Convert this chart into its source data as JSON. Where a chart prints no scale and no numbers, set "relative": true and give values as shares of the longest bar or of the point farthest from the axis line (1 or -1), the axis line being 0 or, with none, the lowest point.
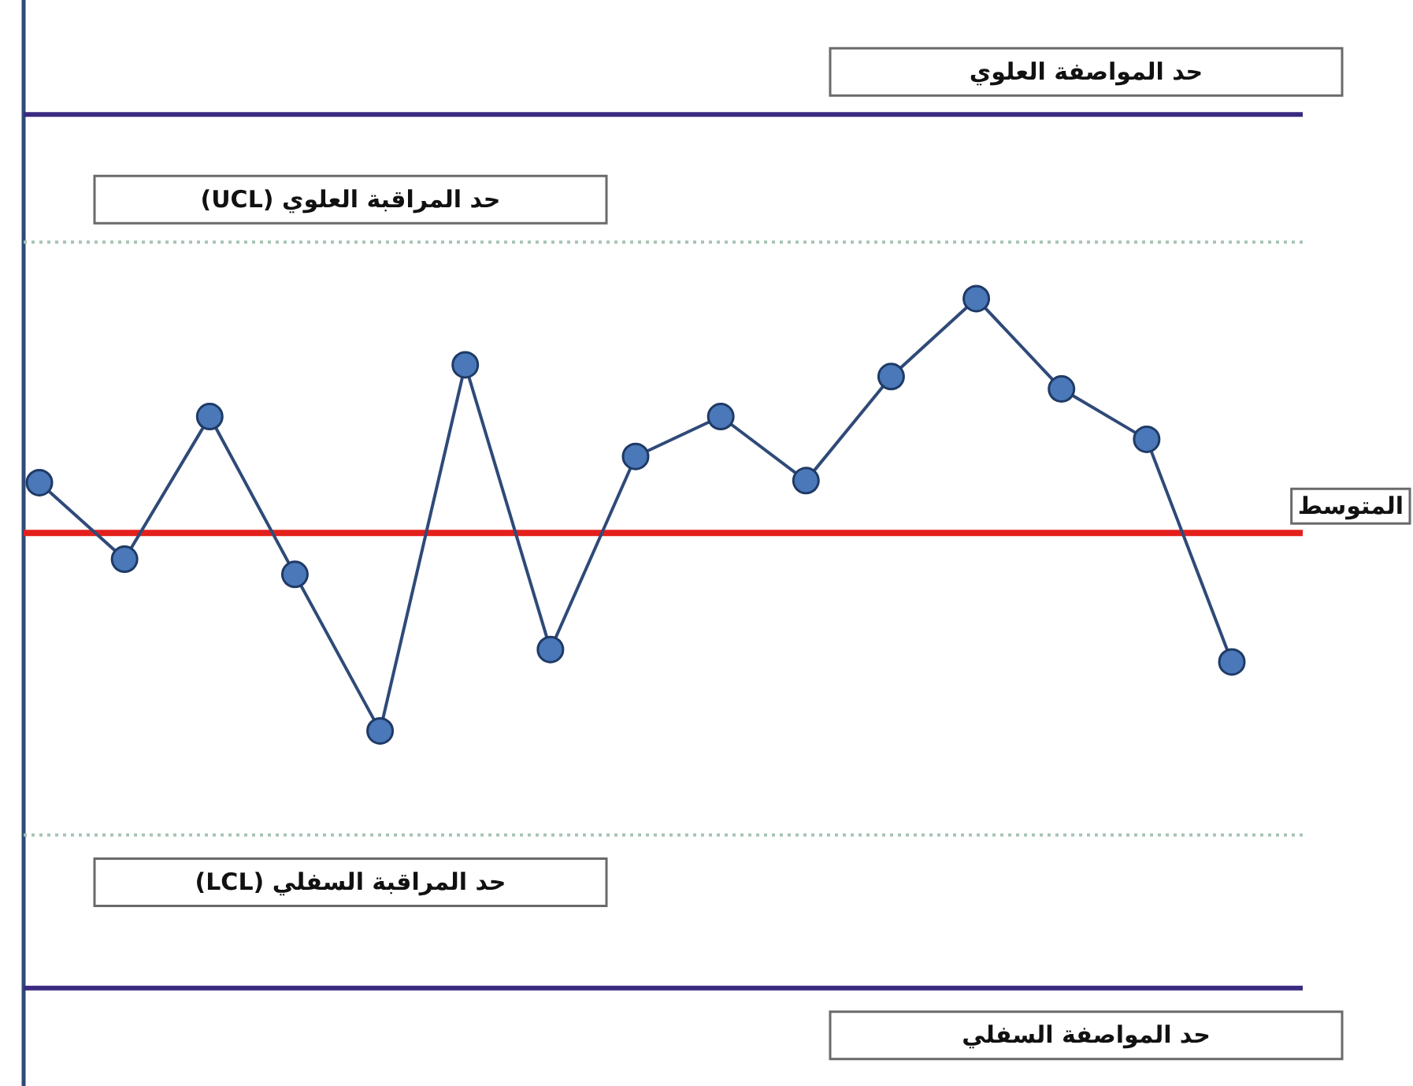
{
  "chart_data": {
    "type": "line",
    "relative": true,
    "categories": [
      null,
      null,
      null,
      null,
      null,
      null,
      null,
      null,
      null,
      null,
      null,
      null,
      null,
      null,
      null
    ],
    "series": [
      {
        "color": "#2f4a78",
        "values": [
          0.733,
          0.622,
          0.829,
          0.6,
          0.373,
          0.904,
          0.491,
          0.771,
          0.829,
          0.736,
          0.887,
          1,
          0.869,
          0.796,
          0.473
        ]
      }
    ],
    "marker": "circle",
    "ref_lines": [
      {
        "axis": "y",
        "value": 1.267,
        "label": "حد المواصفة العلوي",
        "color": "#3a2a80",
        "line_style": "solid"
      },
      {
        "axis": "y",
        "value": 1.082,
        "label": "حد المراقبة العلوي (UCL)",
        "color": "#a8c4b4",
        "line_style": "dotted"
      },
      {
        "axis": "y",
        "value": 0.66,
        "label": "المتوسط",
        "color": "#e3201c",
        "line_style": "solid"
      },
      {
        "axis": "y",
        "value": 0.222,
        "label": "حد المراقبة السفلي (LCL)",
        "color": "#a8c4b4",
        "line_style": "dotted"
      },
      {
        "axis": "y",
        "value": 0,
        "label": "حد المواصفة السفلي",
        "color": "#3a2a80",
        "line_style": "solid"
      }
    ],
    "legend": false
  }
}
